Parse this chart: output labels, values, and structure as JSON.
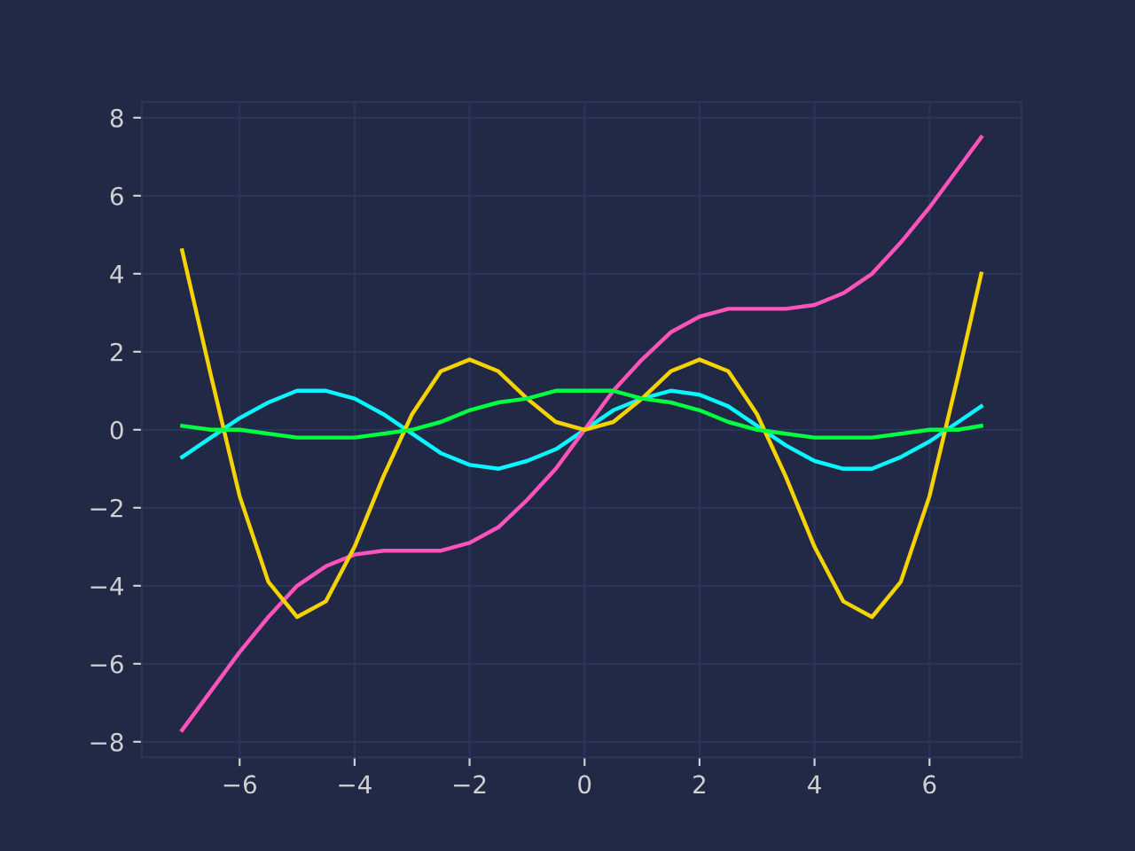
{
  "chart_data": {
    "type": "line",
    "x": [
      -7,
      -6.5,
      -6,
      -5.5,
      -5,
      -4.5,
      -4,
      -3.5,
      -3,
      -2.5,
      -2,
      -1.5,
      -1,
      -0.5,
      0,
      0.5,
      1,
      1.5,
      2,
      2.5,
      3,
      3.5,
      4,
      4.5,
      5,
      5.5,
      6,
      6.5,
      6.9
    ],
    "series": [
      {
        "color": "#08f7fe",
        "values": [
          -0.7,
          -0.2,
          0.3,
          0.7,
          1.0,
          1.0,
          0.8,
          0.4,
          -0.1,
          -0.6,
          -0.9,
          -1.0,
          -0.8,
          -0.5,
          0,
          0.5,
          0.8,
          1.0,
          0.9,
          0.6,
          0.1,
          -0.4,
          -0.8,
          -1.0,
          -1.0,
          -0.7,
          -0.3,
          0.2,
          0.6
        ]
      },
      {
        "color": "#fe53bb",
        "values": [
          -7.7,
          -6.7,
          -5.7,
          -4.8,
          -4.0,
          -3.5,
          -3.2,
          -3.1,
          -3.1,
          -3.1,
          -2.9,
          -2.5,
          -1.8,
          -1.0,
          0,
          1.0,
          1.8,
          2.5,
          2.9,
          3.1,
          3.1,
          3.1,
          3.2,
          3.5,
          4.0,
          4.8,
          5.7,
          6.7,
          7.5
        ]
      },
      {
        "color": "#f5d300",
        "values": [
          4.6,
          1.4,
          -1.7,
          -3.9,
          -4.8,
          -4.4,
          -3.0,
          -1.2,
          0.4,
          1.5,
          1.8,
          1.5,
          0.8,
          0.2,
          0,
          0.2,
          0.8,
          1.5,
          1.8,
          1.5,
          0.4,
          -1.2,
          -3.0,
          -4.4,
          -4.8,
          -3.9,
          -1.7,
          1.4,
          4.0
        ]
      },
      {
        "color": "#00ff41",
        "values": [
          0.1,
          0.0,
          0.0,
          -0.1,
          -0.2,
          -0.2,
          -0.2,
          -0.1,
          0.0,
          0.2,
          0.5,
          0.7,
          0.8,
          1.0,
          1.0,
          1.0,
          0.8,
          0.7,
          0.5,
          0.2,
          0.0,
          -0.1,
          -0.2,
          -0.2,
          -0.2,
          -0.1,
          0.0,
          0.0,
          0.1
        ]
      }
    ],
    "xlim": [
      -7.7,
      7.6
    ],
    "ylim": [
      -8.4,
      8.4
    ],
    "xticks": [
      {
        "value": -6,
        "label": "−6"
      },
      {
        "value": -4,
        "label": "−4"
      },
      {
        "value": -2,
        "label": "−2"
      },
      0,
      2,
      4,
      6
    ],
    "yticks": [
      {
        "value": -8,
        "label": "−8"
      },
      {
        "value": -6,
        "label": "−6"
      },
      {
        "value": -4,
        "label": "−4"
      },
      {
        "value": -2,
        "label": "−2"
      },
      0,
      2,
      4,
      6,
      8
    ],
    "grid": true,
    "legend": false,
    "marker": "none",
    "line_style": "solid"
  }
}
